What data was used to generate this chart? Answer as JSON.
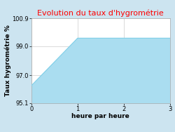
{
  "title": "Evolution du taux d'hygrométrie",
  "title_color": "#ff0000",
  "xlabel": "heure par heure",
  "ylabel": "Taux hygrométrie %",
  "x": [
    0,
    1,
    2,
    3
  ],
  "y": [
    96.3,
    99.55,
    99.55,
    99.55
  ],
  "ylim": [
    95.1,
    100.9
  ],
  "xlim": [
    0,
    3
  ],
  "yticks": [
    95.1,
    97.0,
    99.0,
    100.9
  ],
  "xticks": [
    0,
    1,
    2,
    3
  ],
  "line_color": "#7ecfe8",
  "fill_color": "#aaddf0",
  "bg_color": "#cce4f0",
  "plot_bg_color": "#ffffff",
  "grid_color": "#cccccc",
  "title_fontsize": 8,
  "label_fontsize": 6.5,
  "tick_fontsize": 6
}
